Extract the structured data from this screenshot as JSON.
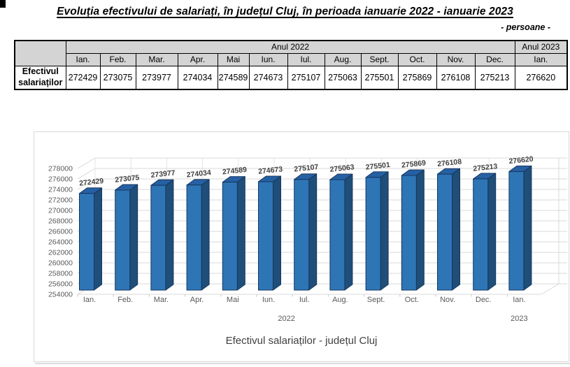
{
  "page": {
    "title": "Evoluția efectivului de salariați, în județul Cluj, în perioada ianuarie 2022 - ianuarie 2023",
    "unit_note": "- persoane -"
  },
  "table": {
    "year_headers": [
      {
        "label": "Anul 2022",
        "span": 12
      },
      {
        "label": "Anul 2023",
        "span": 1
      }
    ],
    "columns": [
      "Ian.",
      "Feb.",
      "Mar.",
      "Apr.",
      "Mai",
      "Iun.",
      "Iul.",
      "Aug.",
      "Sept.",
      "Oct.",
      "Nov.",
      "Dec.",
      "Ian."
    ],
    "row_header": "Efectivul salariaților",
    "values": [
      272429,
      273075,
      273977,
      274034,
      274589,
      274673,
      275107,
      275063,
      275501,
      275869,
      276108,
      275213,
      276620
    ],
    "header_bg": "#D4D4D4"
  },
  "chart_data": {
    "type": "bar",
    "style": "3d-column",
    "title": "Efectivul salariaților - județul Cluj",
    "categories": [
      "Ian.",
      "Feb.",
      "Mar.",
      "Apr.",
      "Mai",
      "Iun.",
      "Iul.",
      "Aug.",
      "Sept.",
      "Oct.",
      "Nov.",
      "Dec.",
      "Ian."
    ],
    "values": [
      272429,
      273075,
      273977,
      274034,
      274589,
      274673,
      275107,
      275063,
      275501,
      275869,
      276108,
      275213,
      276620
    ],
    "year_groups": [
      {
        "label": "2022",
        "from": 0,
        "to": 11
      },
      {
        "label": "2023",
        "from": 12,
        "to": 12
      }
    ],
    "data_labels": true,
    "legend": "none",
    "grid": true,
    "ylim": [
      254000,
      278000
    ],
    "ytick_step": 2000,
    "xlabel": "",
    "ylabel": "",
    "colors": {
      "bar_front": "#2E75B6",
      "bar_top": "#2660A4",
      "bar_side": "#1F4E79",
      "bar_outline": "#16375E",
      "gridline": "#D9D9D9",
      "axis_text": "#595959",
      "data_label_text": "#404040",
      "title_text": "#404040"
    }
  }
}
